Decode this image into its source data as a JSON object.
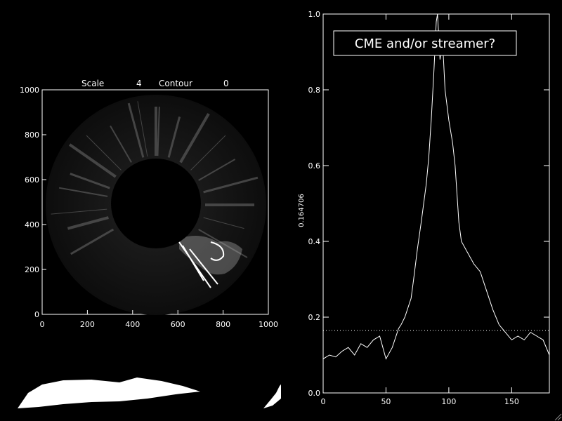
{
  "header": {
    "scale_label": "Scale",
    "scale_value": "4",
    "contour_label": "Contour",
    "contour_value": "0"
  },
  "image_panel": {
    "x_ticks": [
      "0",
      "200",
      "400",
      "600",
      "800",
      "1000"
    ],
    "y_ticks": [
      "0",
      "200",
      "400",
      "600",
      "800",
      "1000"
    ]
  },
  "annotation": {
    "text": "CME and/or streamer?"
  },
  "chart_data": {
    "type": "line",
    "title": "",
    "xlabel": "",
    "ylabel": "0.164706",
    "xlim": [
      0,
      180
    ],
    "ylim": [
      0,
      1.0
    ],
    "x_ticks": [
      "0",
      "50",
      "100",
      "150"
    ],
    "y_ticks": [
      "0.0",
      "0.2",
      "0.4",
      "0.6",
      "0.8",
      "1.0"
    ],
    "threshold": 0.164706,
    "series": [
      {
        "x": [
          0,
          5,
          10,
          15,
          20,
          25,
          30,
          35,
          40,
          45,
          50,
          55,
          60,
          62,
          65,
          70,
          72,
          75,
          78,
          80,
          82,
          84,
          86,
          88,
          90,
          91,
          93,
          95,
          97,
          100,
          103,
          105,
          108,
          110,
          115,
          120,
          125,
          130,
          135,
          140,
          145,
          150,
          155,
          160,
          165,
          170,
          175,
          180
        ],
        "y": [
          0.09,
          0.1,
          0.095,
          0.11,
          0.12,
          0.1,
          0.13,
          0.12,
          0.14,
          0.15,
          0.09,
          0.12,
          0.17,
          0.18,
          0.2,
          0.25,
          0.3,
          0.38,
          0.45,
          0.5,
          0.55,
          0.62,
          0.72,
          0.84,
          0.98,
          1.0,
          0.88,
          0.93,
          0.8,
          0.72,
          0.66,
          0.6,
          0.45,
          0.4,
          0.37,
          0.34,
          0.32,
          0.27,
          0.22,
          0.18,
          0.16,
          0.14,
          0.15,
          0.14,
          0.16,
          0.15,
          0.14,
          0.1
        ]
      }
    ]
  }
}
